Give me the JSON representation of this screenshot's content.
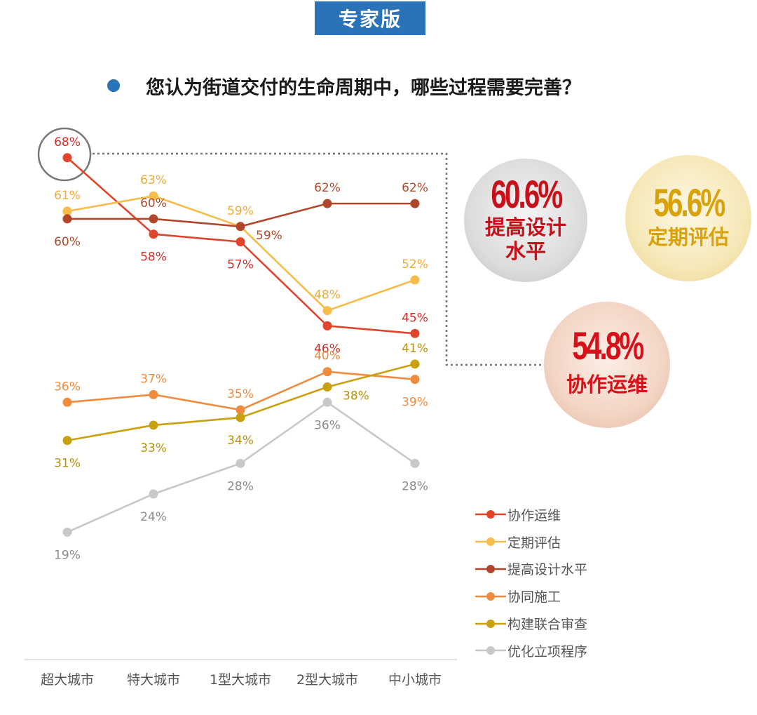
{
  "header": {
    "badge": "专家版",
    "question": "您认为街道交付的生命周期中，哪些过程需要完善？"
  },
  "colors": {
    "badge": "#2b73b8",
    "bullet": "#2b73b8"
  },
  "chart_data": {
    "type": "line",
    "categories": [
      "超大城市",
      "特大城市",
      "1型大城市",
      "2型大城市",
      "中小城市"
    ],
    "ylim": [
      15,
      70
    ],
    "grid": false,
    "legend_position": "bottom-right",
    "highlight": {
      "series": "协作运维",
      "category": "超大城市",
      "marker": "circle"
    },
    "series": [
      {
        "name": "协作运维",
        "color": "#e0442a",
        "label_color": "#d42d28",
        "values": [
          68,
          58,
          57,
          46,
          45
        ],
        "labels": [
          "68%",
          "58%",
          "57%",
          "46%",
          "45%"
        ],
        "label_pos": [
          "above",
          "below",
          "below",
          "below",
          "above"
        ]
      },
      {
        "name": "定期评估",
        "color": "#f7bc4a",
        "label_color": "#f0aa35",
        "values": [
          61,
          63,
          59,
          48,
          52
        ],
        "labels": [
          "61%",
          "63%",
          "59%",
          "48%",
          "52%"
        ],
        "label_pos": [
          "above",
          "above",
          "above",
          "above",
          "above"
        ]
      },
      {
        "name": "提高设计水平",
        "color": "#b2462a",
        "label_color": "#b04a2c",
        "values": [
          60,
          60,
          59,
          62,
          62
        ],
        "labels": [
          "60%",
          "60%",
          "59%",
          "62%",
          "62%"
        ],
        "label_pos": [
          "below",
          "above",
          "below-right",
          "above",
          "above"
        ]
      },
      {
        "name": "协同施工",
        "color": "#f08a3c",
        "label_color": "#ee8b3e",
        "values": [
          36,
          37,
          35,
          40,
          39
        ],
        "labels": [
          "36%",
          "37%",
          "35%",
          "40%",
          "39%"
        ],
        "label_pos": [
          "above",
          "above",
          "above",
          "above",
          "below"
        ]
      },
      {
        "name": "构建联合审查",
        "color": "#c9a00e",
        "label_color": "#b8920a",
        "values": [
          31,
          33,
          34,
          38,
          41
        ],
        "labels": [
          "31%",
          "33%",
          "34%",
          "38%",
          "41%"
        ],
        "label_pos": [
          "below",
          "below",
          "below",
          "below-right",
          "above"
        ]
      },
      {
        "name": "优化立项程序",
        "color": "#c8c8c8",
        "label_color": "#8a8a8a",
        "values": [
          19,
          24,
          28,
          36,
          28
        ],
        "labels": [
          "19%",
          "24%",
          "28%",
          "36%",
          "28%"
        ],
        "label_pos": [
          "below",
          "below",
          "below",
          "below",
          "below"
        ]
      }
    ]
  },
  "callouts": [
    {
      "value": "60.6%",
      "label_lines": [
        "提高设计",
        "水平"
      ],
      "color": "#c8101a",
      "bg": "#d6d6d6"
    },
    {
      "value": "56.6%",
      "label_lines": [
        "定期评估"
      ],
      "color": "#d9a20b",
      "bg": "#f4e6b4"
    },
    {
      "value": "54.8%",
      "label_lines": [
        "协作运维"
      ],
      "color": "#d8101a",
      "bg": "#f0cdbd"
    }
  ]
}
